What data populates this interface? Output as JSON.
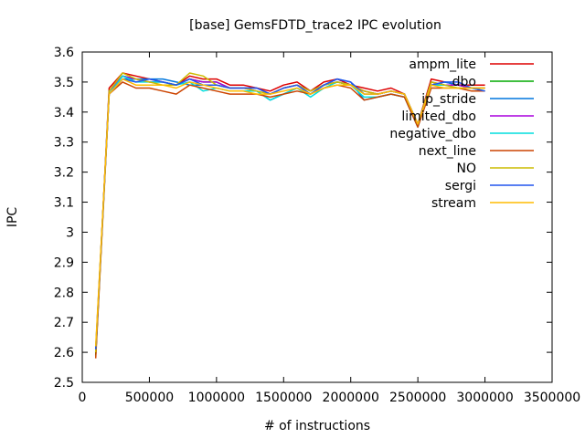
{
  "chart_data": {
    "type": "line",
    "title": "[base] GemsFDTD_trace2 IPC evolution",
    "xlabel": "# of instructions",
    "ylabel": "IPC",
    "xlim": [
      0,
      3500000
    ],
    "ylim": [
      2.5,
      3.6
    ],
    "xticks": [
      0,
      500000,
      1000000,
      1500000,
      2000000,
      2500000,
      3000000,
      3500000
    ],
    "yticks": [
      2.5,
      2.6,
      2.7,
      2.8,
      2.9,
      3,
      3.1,
      3.2,
      3.3,
      3.4,
      3.5,
      3.6
    ],
    "grid": false,
    "legend_position": "top-right",
    "x": [
      100000,
      200000,
      300000,
      400000,
      500000,
      600000,
      700000,
      800000,
      900000,
      1000000,
      1100000,
      1200000,
      1300000,
      1400000,
      1500000,
      1600000,
      1700000,
      1800000,
      1900000,
      2000000,
      2100000,
      2200000,
      2300000,
      2400000,
      2500000,
      2600000,
      2700000,
      2800000,
      2900000,
      3000000
    ],
    "series": [
      {
        "name": "ampm_lite",
        "color": "#dd0000",
        "values": [
          2.59,
          3.48,
          3.53,
          3.52,
          3.51,
          3.5,
          3.49,
          3.52,
          3.51,
          3.51,
          3.49,
          3.49,
          3.48,
          3.47,
          3.49,
          3.5,
          3.47,
          3.5,
          3.51,
          3.49,
          3.48,
          3.47,
          3.48,
          3.46,
          3.36,
          3.51,
          3.5,
          3.49,
          3.49,
          3.49
        ]
      },
      {
        "name": "dbo",
        "color": "#00aa00",
        "values": [
          2.59,
          3.47,
          3.52,
          3.51,
          3.5,
          3.5,
          3.49,
          3.51,
          3.5,
          3.5,
          3.48,
          3.48,
          3.48,
          3.46,
          3.48,
          3.49,
          3.47,
          3.49,
          3.5,
          3.49,
          3.47,
          3.46,
          3.47,
          3.46,
          3.36,
          3.5,
          3.49,
          3.49,
          3.48,
          3.48
        ]
      },
      {
        "name": "ip_stride",
        "color": "#0077dd",
        "values": [
          2.61,
          3.46,
          3.51,
          3.51,
          3.51,
          3.51,
          3.5,
          3.49,
          3.49,
          3.49,
          3.48,
          3.48,
          3.47,
          3.44,
          3.46,
          3.48,
          3.46,
          3.49,
          3.51,
          3.5,
          3.44,
          3.45,
          3.46,
          3.45,
          3.36,
          3.49,
          3.5,
          3.49,
          3.48,
          3.47
        ]
      },
      {
        "name": "limited_dbo",
        "color": "#aa00dd",
        "values": [
          2.6,
          3.47,
          3.52,
          3.51,
          3.5,
          3.5,
          3.49,
          3.51,
          3.5,
          3.5,
          3.48,
          3.48,
          3.48,
          3.46,
          3.48,
          3.49,
          3.47,
          3.49,
          3.5,
          3.49,
          3.47,
          3.46,
          3.47,
          3.46,
          3.36,
          3.5,
          3.49,
          3.49,
          3.48,
          3.48
        ]
      },
      {
        "name": "negative_dbo",
        "color": "#00dddd",
        "values": [
          2.6,
          3.46,
          3.52,
          3.5,
          3.5,
          3.5,
          3.49,
          3.5,
          3.47,
          3.48,
          3.47,
          3.47,
          3.47,
          3.44,
          3.46,
          3.48,
          3.45,
          3.48,
          3.5,
          3.49,
          3.45,
          3.45,
          3.46,
          3.45,
          3.35,
          3.49,
          3.49,
          3.48,
          3.48,
          3.47
        ]
      },
      {
        "name": "next_line",
        "color": "#cc4400",
        "values": [
          2.58,
          3.46,
          3.5,
          3.48,
          3.48,
          3.47,
          3.46,
          3.49,
          3.48,
          3.47,
          3.46,
          3.46,
          3.46,
          3.45,
          3.46,
          3.47,
          3.46,
          3.48,
          3.49,
          3.48,
          3.44,
          3.45,
          3.46,
          3.45,
          3.35,
          3.48,
          3.48,
          3.48,
          3.47,
          3.47
        ]
      },
      {
        "name": "NO",
        "color": "#ccbb00",
        "values": [
          2.6,
          3.47,
          3.53,
          3.51,
          3.5,
          3.49,
          3.49,
          3.53,
          3.52,
          3.49,
          3.48,
          3.48,
          3.47,
          3.46,
          3.48,
          3.49,
          3.47,
          3.49,
          3.5,
          3.49,
          3.47,
          3.46,
          3.47,
          3.46,
          3.36,
          3.5,
          3.49,
          3.48,
          3.48,
          3.48
        ]
      },
      {
        "name": "sergi",
        "color": "#2255ee",
        "values": [
          2.61,
          3.46,
          3.51,
          3.5,
          3.51,
          3.5,
          3.49,
          3.51,
          3.49,
          3.49,
          3.48,
          3.48,
          3.48,
          3.46,
          3.48,
          3.49,
          3.46,
          3.49,
          3.51,
          3.5,
          3.46,
          3.46,
          3.47,
          3.46,
          3.36,
          3.49,
          3.5,
          3.5,
          3.48,
          3.47
        ]
      },
      {
        "name": "stream",
        "color": "#ffbb00",
        "values": [
          2.62,
          3.46,
          3.51,
          3.49,
          3.49,
          3.49,
          3.48,
          3.5,
          3.49,
          3.48,
          3.47,
          3.47,
          3.46,
          3.46,
          3.47,
          3.48,
          3.46,
          3.48,
          3.49,
          3.49,
          3.46,
          3.46,
          3.47,
          3.46,
          3.36,
          3.49,
          3.48,
          3.48,
          3.48,
          3.48
        ]
      }
    ]
  }
}
